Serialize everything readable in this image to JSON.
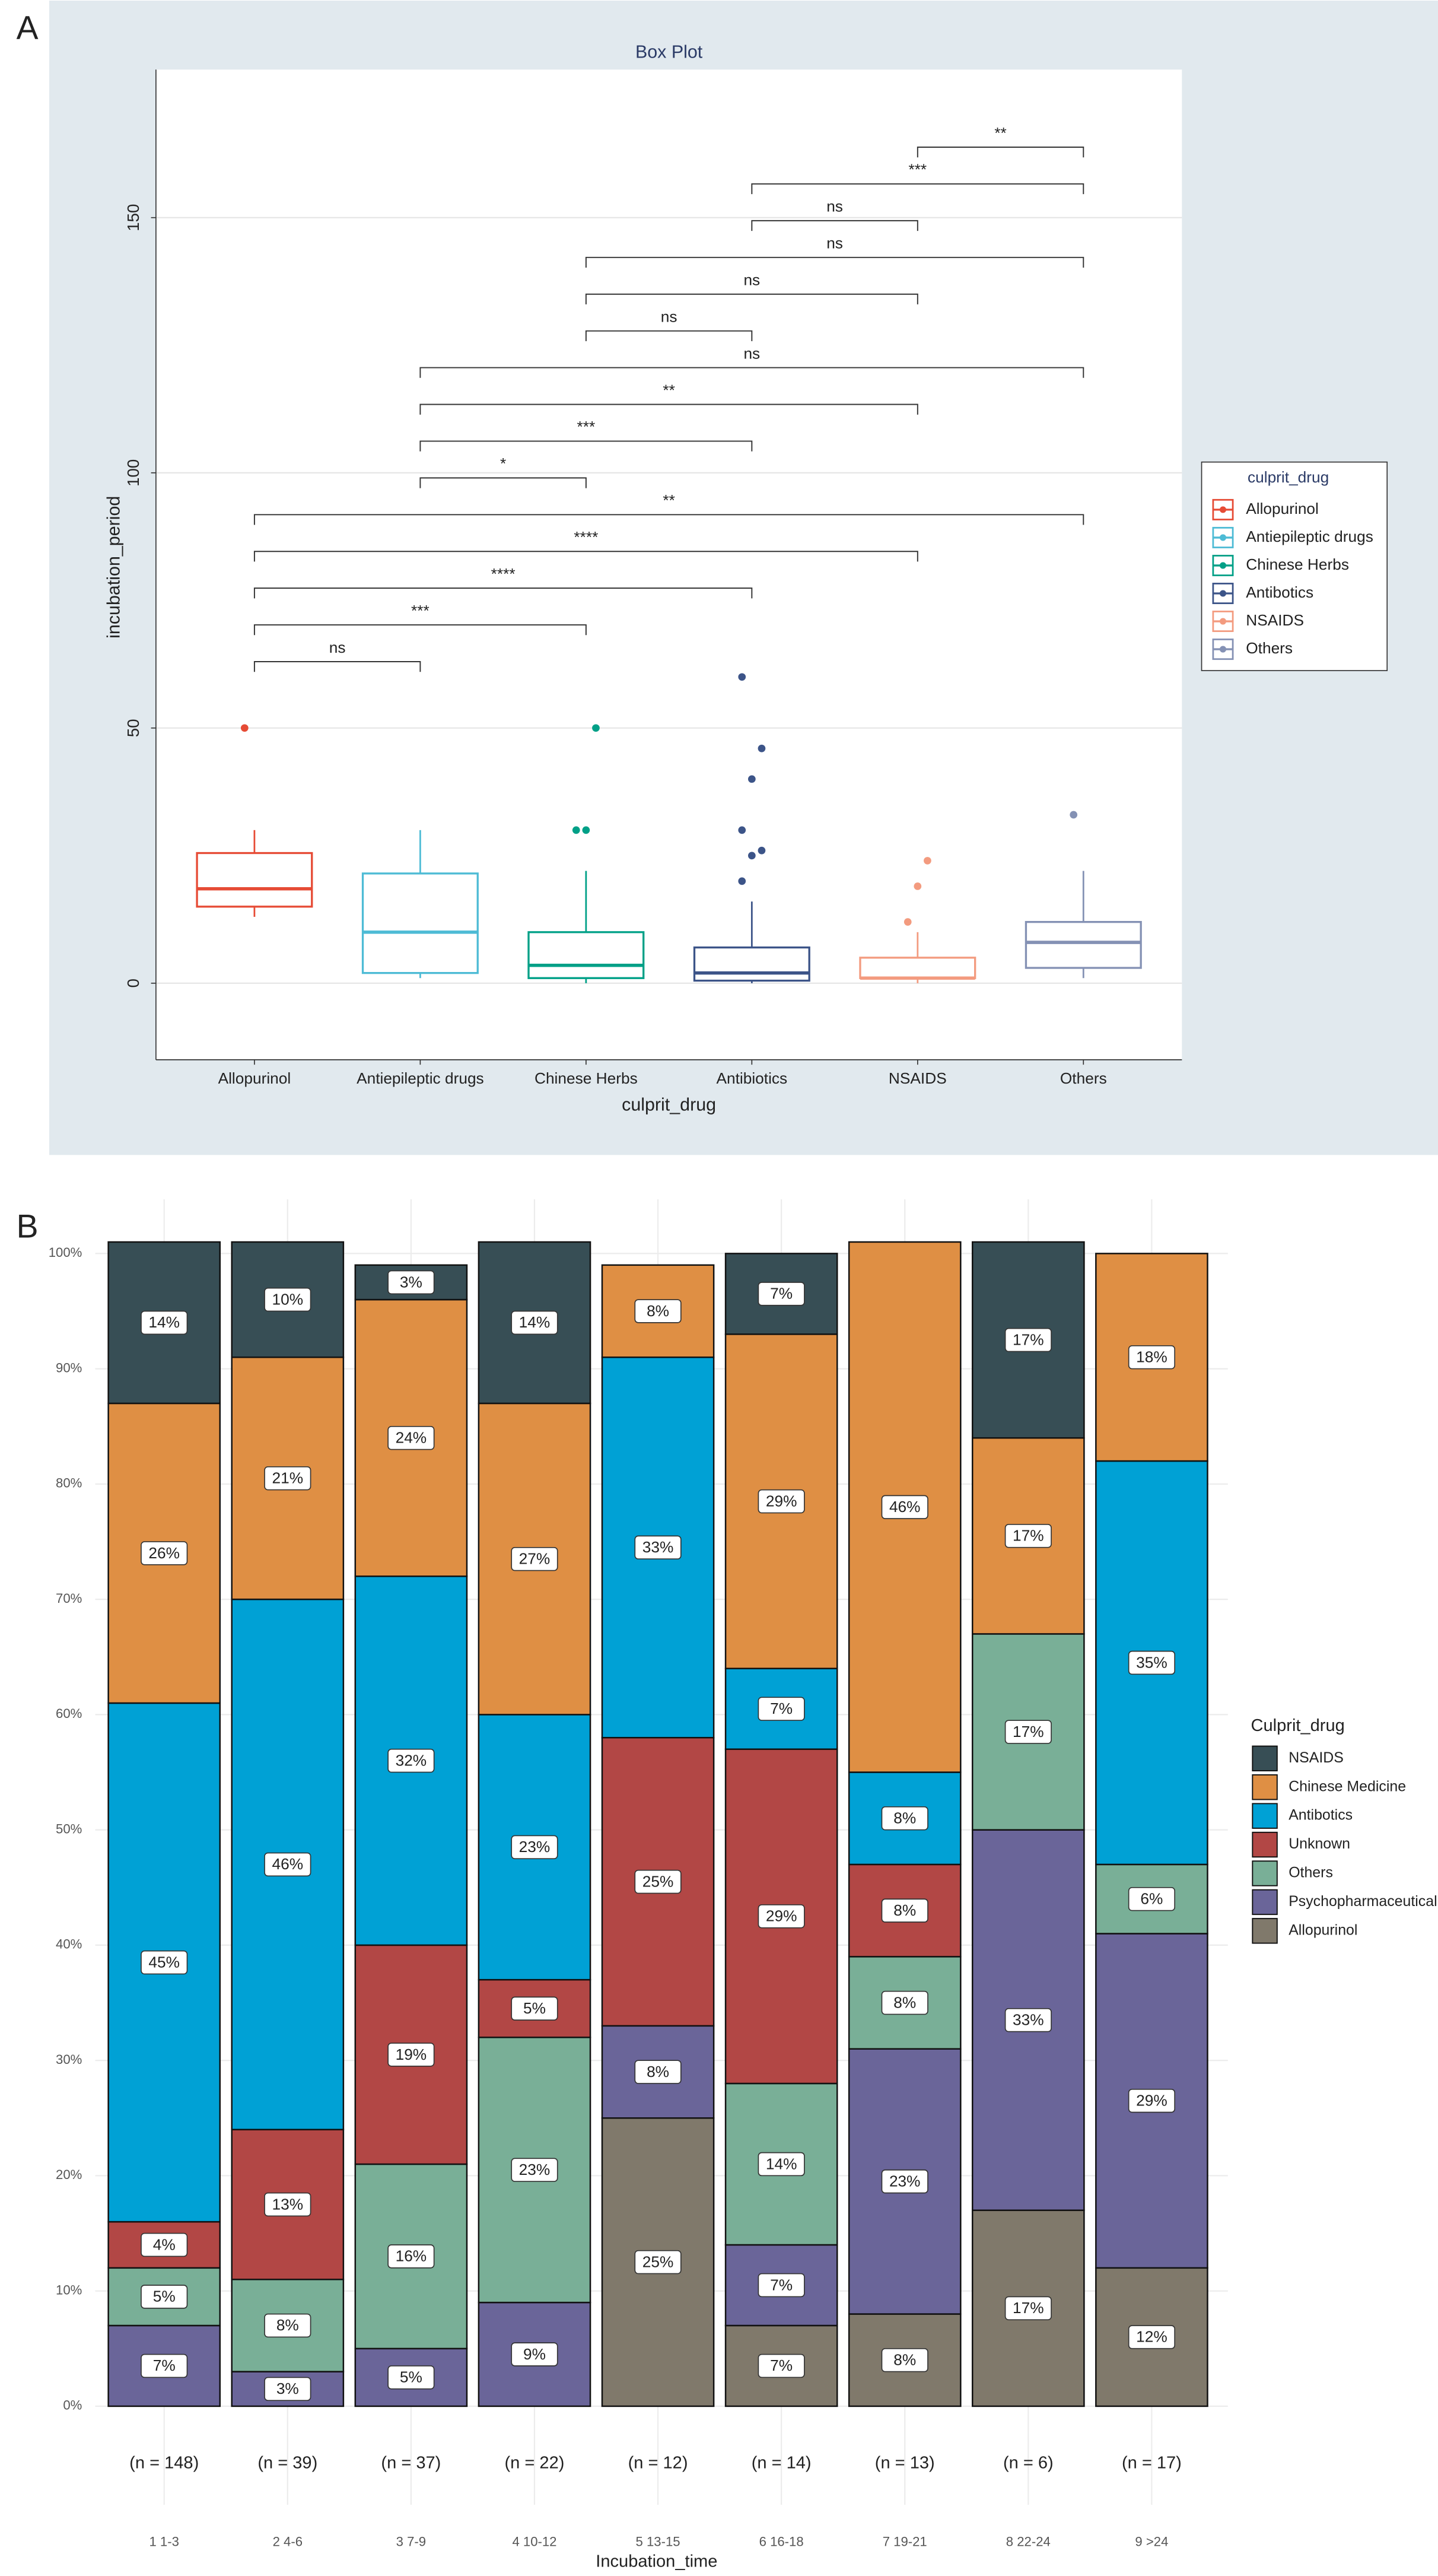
{
  "chart_data": [
    {
      "type": "box",
      "panel_label": "A",
      "title": "Box Plot",
      "x_label": "culprit_drug",
      "y_label": "incubation_period",
      "legend_title": "culprit_drug",
      "grid": true,
      "categories": [
        "Allopurinol",
        "Antiepileptic drugs",
        "Chinese Herbs",
        "Antibiotics",
        "NSAIDS",
        "Others"
      ],
      "ylim": [
        -15,
        179
      ],
      "yticks": [
        0,
        50,
        100,
        150
      ],
      "series": [
        {
          "name": "Allopurinol",
          "color": "#e64b35",
          "whisker_low": 13,
          "q1": 15,
          "median": 18.5,
          "q3": 25.5,
          "whisker_high": 30,
          "outliers": [
            50
          ]
        },
        {
          "name": "Antiepileptic drugs",
          "color": "#4dbbd5",
          "whisker_low": 1,
          "q1": 2,
          "median": 10,
          "q3": 21.5,
          "whisker_high": 30,
          "outliers": []
        },
        {
          "name": "Chinese Herbs",
          "color": "#00a087",
          "whisker_low": 0,
          "q1": 1,
          "median": 3.5,
          "q3": 10,
          "whisker_high": 22,
          "outliers": [
            30,
            30,
            50
          ]
        },
        {
          "name": "Antibotics",
          "color": "#3c5488",
          "whisker_low": 0,
          "q1": 0.5,
          "median": 2,
          "q3": 7,
          "whisker_high": 16,
          "outliers": [
            20,
            25,
            26,
            30,
            40,
            46,
            60
          ]
        },
        {
          "name": "NSAIDS",
          "color": "#f39b7f",
          "whisker_low": 0,
          "q1": 1,
          "median": 1,
          "q3": 5,
          "whisker_high": 10,
          "outliers": [
            12,
            19,
            24
          ]
        },
        {
          "name": "Others",
          "color": "#8491b4",
          "whisker_low": 1,
          "q1": 3,
          "median": 8,
          "q3": 12,
          "whisker_high": 22,
          "outliers": [
            33
          ]
        }
      ],
      "comparisons": [
        {
          "pair": [
            "Allopurinol",
            "Antiepileptic drugs"
          ],
          "label": "ns"
        },
        {
          "pair": [
            "Allopurinol",
            "Chinese Herbs"
          ],
          "label": "***"
        },
        {
          "pair": [
            "Allopurinol",
            "Antibiotics"
          ],
          "label": "****"
        },
        {
          "pair": [
            "Allopurinol",
            "NSAIDS"
          ],
          "label": "****"
        },
        {
          "pair": [
            "Allopurinol",
            "Others"
          ],
          "label": "**"
        },
        {
          "pair": [
            "Antiepileptic drugs",
            "Chinese Herbs"
          ],
          "label": "*"
        },
        {
          "pair": [
            "Antiepileptic drugs",
            "Antibiotics"
          ],
          "label": "***"
        },
        {
          "pair": [
            "Antiepileptic drugs",
            "NSAIDS"
          ],
          "label": "**"
        },
        {
          "pair": [
            "Antiepileptic drugs",
            "Others"
          ],
          "label": "ns"
        },
        {
          "pair": [
            "Chinese Herbs",
            "Antibiotics"
          ],
          "label": "ns"
        },
        {
          "pair": [
            "Chinese Herbs",
            "NSAIDS"
          ],
          "label": "ns"
        },
        {
          "pair": [
            "Chinese Herbs",
            "Others"
          ],
          "label": "ns"
        },
        {
          "pair": [
            "Antibiotics",
            "NSAIDS"
          ],
          "label": "ns"
        },
        {
          "pair": [
            "Antibiotics",
            "Others"
          ],
          "label": "***"
        },
        {
          "pair": [
            "NSAIDS",
            "Others"
          ],
          "label": "**"
        }
      ]
    },
    {
      "type": "stacked_bar",
      "panel_label": "B",
      "x_label": "Incubation_time",
      "legend_title": "Culprit_drug",
      "grid": true,
      "categories": [
        "1 1-3",
        "2 4-6",
        "3 7-9",
        "4 10-12",
        "5 13-15",
        "6 16-18",
        "7 19-21",
        "8 22-24",
        "9 >24"
      ],
      "n_labels": [
        "(n = 148)",
        "(n = 39)",
        "(n = 37)",
        "(n = 22)",
        "(n = 12)",
        "(n = 14)",
        "(n = 13)",
        "(n = 6)",
        "(n = 17)"
      ],
      "ylim": [
        0,
        100
      ],
      "yticks": [
        {
          "value": 0,
          "label": "0%"
        },
        {
          "value": 10,
          "label": "10%"
        },
        {
          "value": 20,
          "label": "20%"
        },
        {
          "value": 30,
          "label": "30%"
        },
        {
          "value": 40,
          "label": "40%"
        },
        {
          "value": 50,
          "label": "50%"
        },
        {
          "value": 60,
          "label": "60%"
        },
        {
          "value": 70,
          "label": "70%"
        },
        {
          "value": 80,
          "label": "80%"
        },
        {
          "value": 90,
          "label": "90%"
        },
        {
          "value": 100,
          "label": "100%"
        }
      ],
      "series": [
        {
          "name": "Allopurinol",
          "color": "#80796b",
          "values": [
            null,
            null,
            null,
            null,
            25,
            7,
            8,
            17,
            12
          ],
          "value_labels": [
            null,
            null,
            null,
            null,
            "25%",
            "7%",
            "8%",
            "17%",
            "12%"
          ]
        },
        {
          "name": "Psychopharmaceutical",
          "color": "#6a6599",
          "values": [
            7,
            3,
            5,
            9,
            8,
            7,
            23,
            33,
            29
          ],
          "value_labels": [
            "7%",
            "3%",
            "5%",
            "9%",
            "8%",
            "7%",
            "23%",
            "33%",
            "29%"
          ]
        },
        {
          "name": "Others",
          "color": "#79af97",
          "values": [
            5,
            8,
            16,
            23,
            null,
            14,
            8,
            17,
            6
          ],
          "value_labels": [
            "5%",
            "8%",
            "16%",
            "23%",
            null,
            "14%",
            "8%",
            "17%",
            "6%"
          ]
        },
        {
          "name": "Unknown",
          "color": "#b24745",
          "values": [
            4,
            13,
            19,
            5,
            25,
            29,
            8,
            null,
            null
          ],
          "value_labels": [
            "4%",
            "13%",
            "19%",
            "5%",
            "25%",
            "29%",
            "8%",
            null,
            null
          ]
        },
        {
          "name": "Antibotics",
          "color": "#00a1d5",
          "values": [
            45,
            46,
            32,
            23,
            33,
            7,
            8,
            null,
            35
          ],
          "value_labels": [
            "45%",
            "46%",
            "32%",
            "23%",
            "33%",
            "7%",
            "8%",
            null,
            "35%"
          ]
        },
        {
          "name": "Chinese Medicine",
          "color": "#df8f44",
          "values": [
            26,
            21,
            24,
            27,
            8,
            29,
            46,
            17,
            18
          ],
          "value_labels": [
            "26%",
            "21%",
            "24%",
            "27%",
            "8%",
            "29%",
            "46%",
            "17%",
            "18%"
          ]
        },
        {
          "name": "NSAIDS",
          "color": "#374e55",
          "values": [
            14,
            10,
            3,
            14,
            null,
            7,
            null,
            17,
            null
          ],
          "value_labels": [
            "14%",
            "10%",
            "3%",
            "14%",
            null,
            "7%",
            null,
            "17%",
            null
          ]
        }
      ]
    }
  ]
}
